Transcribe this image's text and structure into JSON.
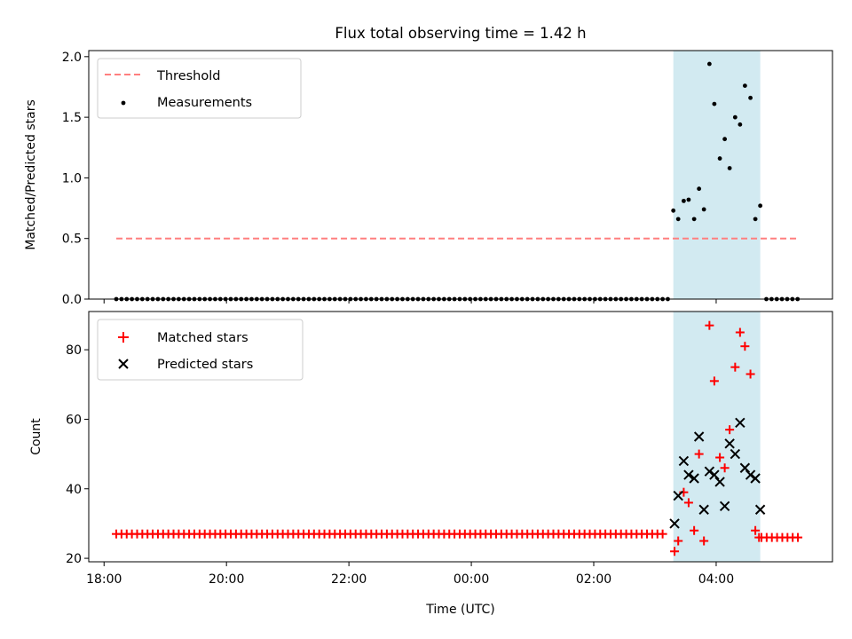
{
  "chart_data": {
    "type": "scatter",
    "title": "Flux total observing time = 1.42 h",
    "xlabel": "Time (UTC)",
    "x_unit": "hours, continuous from 18:00 (values ≥ 24 are the next day)",
    "xlim": [
      17.75,
      29.9
    ],
    "x_ticks": [
      {
        "value": 18,
        "label": "18:00"
      },
      {
        "value": 20,
        "label": "20:00"
      },
      {
        "value": 22,
        "label": "22:00"
      },
      {
        "value": 24,
        "label": "00:00"
      },
      {
        "value": 26,
        "label": "02:00"
      },
      {
        "value": 28,
        "label": "04:00"
      }
    ],
    "shaded_interval": {
      "x0": 27.3,
      "x1": 28.72,
      "color": "#add8e6"
    },
    "panels": [
      {
        "ylabel": "Matched/Predicted stars",
        "ylim": [
          0,
          2.05
        ],
        "y_ticks": [
          {
            "value": 0.0,
            "label": "0.0"
          },
          {
            "value": 0.5,
            "label": "0.5"
          },
          {
            "value": 1.0,
            "label": "1.0"
          },
          {
            "value": 1.5,
            "label": "1.5"
          },
          {
            "value": 2.0,
            "label": "2.0"
          }
        ],
        "legend_position": "top-left",
        "series": [
          {
            "name": "Threshold",
            "style": "dashed-line",
            "color": "#ff7f7f",
            "x": [
              18.2,
              29.35
            ],
            "y": [
              0.5,
              0.5
            ]
          },
          {
            "name": "Measurements",
            "style": "dot",
            "color": "#000000",
            "baseline": {
              "x_start": 18.2,
              "x_end": 27.29,
              "step": 0.085,
              "y": 0
            },
            "baseline_after": {
              "x_start": 28.82,
              "x_end": 29.35,
              "step": 0.085,
              "y": 0
            },
            "x": [
              27.3,
              27.38,
              27.47,
              27.55,
              27.64,
              27.72,
              27.8,
              27.89,
              27.97,
              28.06,
              28.14,
              28.22,
              28.31,
              28.39,
              28.47,
              28.56,
              28.64,
              28.72
            ],
            "y": [
              0.73,
              0.66,
              0.81,
              0.82,
              0.66,
              0.91,
              0.74,
              1.94,
              1.61,
              1.16,
              1.32,
              1.08,
              1.5,
              1.44,
              1.76,
              1.66,
              0.66,
              0.77
            ]
          }
        ]
      },
      {
        "ylabel": "Count",
        "ylim": [
          19,
          91
        ],
        "y_ticks": [
          {
            "value": 20,
            "label": "20"
          },
          {
            "value": 40,
            "label": "40"
          },
          {
            "value": 60,
            "label": "60"
          },
          {
            "value": 80,
            "label": "80"
          }
        ],
        "legend_position": "top-left",
        "series": [
          {
            "name": "Matched stars",
            "style": "plus",
            "color": "#ff0000",
            "baseline": {
              "x_start": 18.2,
              "x_end": 27.2,
              "step": 0.085,
              "y": 27
            },
            "baseline_after": {
              "x_start": 28.74,
              "x_end": 29.35,
              "step": 0.085,
              "y": 26
            },
            "x": [
              27.32,
              27.38,
              27.47,
              27.55,
              27.64,
              27.72,
              27.8,
              27.89,
              27.97,
              28.06,
              28.14,
              28.22,
              28.31,
              28.39,
              28.47,
              28.56,
              28.64,
              28.7
            ],
            "y": [
              22,
              25,
              39,
              36,
              28,
              50,
              25,
              87,
              71,
              49,
              46,
              57,
              75,
              85,
              81,
              73,
              28,
              26
            ]
          },
          {
            "name": "Predicted stars",
            "style": "x",
            "color": "#000000",
            "x": [
              27.32,
              27.38,
              27.47,
              27.55,
              27.64,
              27.72,
              27.8,
              27.89,
              27.97,
              28.06,
              28.14,
              28.22,
              28.31,
              28.39,
              28.47,
              28.56,
              28.64,
              28.72
            ],
            "y": [
              30,
              38,
              48,
              44,
              43,
              55,
              34,
              45,
              44,
              42,
              35,
              53,
              50,
              59,
              46,
              44,
              43,
              34
            ]
          }
        ]
      }
    ]
  },
  "legend": {
    "threshold": "Threshold",
    "measurements": "Measurements",
    "matched": "Matched stars",
    "predicted": "Predicted stars"
  }
}
